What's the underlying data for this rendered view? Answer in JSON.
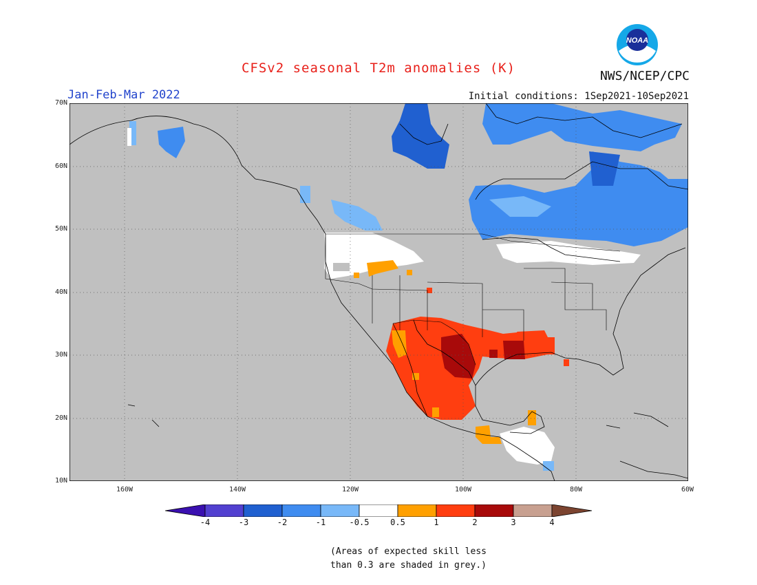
{
  "title": "CFSv2 seasonal T2m anomalies (K)",
  "agency": "NWS/NCEP/CPC",
  "logo_text": "NOAA",
  "period": "Jan-Feb-Mar 2022",
  "initial_conditions": "Initial conditions: 1Sep2021-10Sep2021",
  "lat_labels": [
    "70N",
    "60N",
    "50N",
    "40N",
    "30N",
    "20N",
    "10N"
  ],
  "lon_labels": [
    "160W",
    "140W",
    "120W",
    "100W",
    "80W",
    "60W"
  ],
  "colorbar": {
    "labels": [
      "-4",
      "-3",
      "-2",
      "-1",
      "-0.5",
      "0.5",
      "1",
      "2",
      "3",
      "4"
    ],
    "colors": [
      "#3a10b0",
      "#5240d0",
      "#2060d0",
      "#3f8cf0",
      "#78b8f8",
      "#ffffff",
      "#ffa000",
      "#ff3e10",
      "#a80a0a",
      "#c8a090",
      "#7c4430"
    ]
  },
  "note_line1": "(Areas of expected skill less",
  "note_line2": "than 0.3 are shaded in grey.)",
  "map_colors": {
    "ocean_land_grey": "#c0c0c0",
    "border": "#000000",
    "grid": "#666666"
  }
}
